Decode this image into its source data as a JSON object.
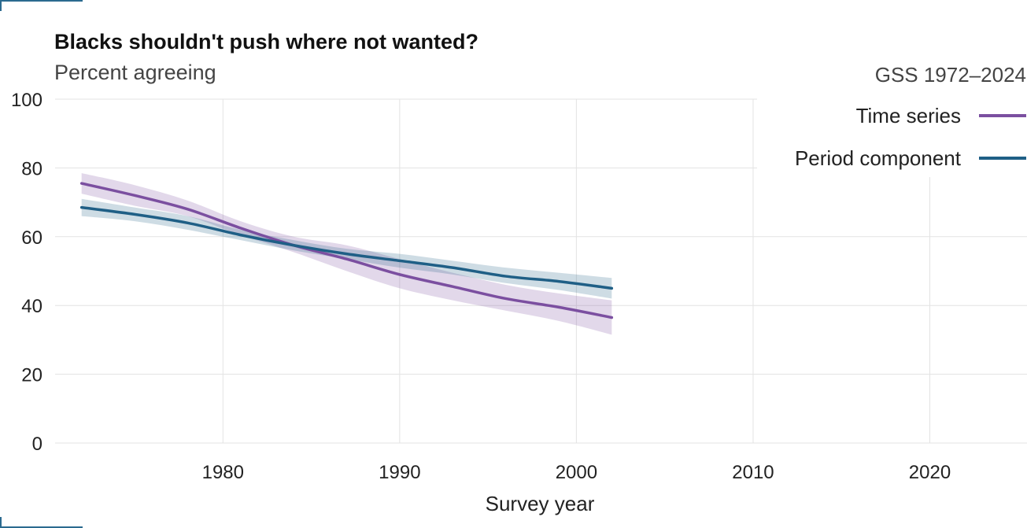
{
  "chart_data": {
    "type": "line",
    "title": "Blacks shouldn't push where not wanted?",
    "subtitle": "Percent agreeing",
    "xlabel": "Survey year",
    "ylabel": "",
    "xlim": [
      1970.5,
      2025.5
    ],
    "ylim": [
      0,
      100
    ],
    "x_ticks": [
      1980,
      1990,
      2000,
      2010,
      2020
    ],
    "y_ticks": [
      0,
      20,
      40,
      60,
      80,
      100
    ],
    "grid": true,
    "legend": {
      "position": "top-right",
      "title": "GSS 1972–2024"
    },
    "colors": {
      "time_series": "#7b4fa0",
      "period_component": "#1f5f86"
    },
    "series": [
      {
        "name": "Time series",
        "color": "#7b4fa0",
        "x": [
          1972,
          1975,
          1978,
          1981,
          1984,
          1987,
          1990,
          1993,
          1996,
          1999,
          2002
        ],
        "y": [
          75.5,
          72.0,
          68.0,
          62.5,
          57.5,
          53.5,
          49.0,
          45.5,
          42.0,
          39.5,
          36.5
        ],
        "lower": [
          72.5,
          69.0,
          66.0,
          60.5,
          55.5,
          50.0,
          45.0,
          41.5,
          38.5,
          35.5,
          31.5
        ],
        "upper": [
          78.5,
          75.0,
          70.5,
          64.5,
          60.0,
          57.5,
          53.5,
          49.5,
          46.0,
          43.5,
          41.5
        ]
      },
      {
        "name": "Period component",
        "color": "#1f5f86",
        "x": [
          1972,
          1975,
          1978,
          1981,
          1984,
          1987,
          1990,
          1993,
          1996,
          1999,
          2002
        ],
        "y": [
          68.5,
          66.5,
          64.0,
          60.5,
          57.5,
          55.0,
          53.0,
          51.0,
          48.5,
          47.0,
          45.0
        ],
        "lower": [
          66.0,
          64.5,
          62.0,
          59.0,
          56.0,
          53.5,
          51.0,
          49.0,
          46.5,
          44.5,
          42.0
        ],
        "upper": [
          71.0,
          68.5,
          66.0,
          62.0,
          59.0,
          56.5,
          55.0,
          53.0,
          51.0,
          49.5,
          48.0
        ]
      }
    ]
  }
}
